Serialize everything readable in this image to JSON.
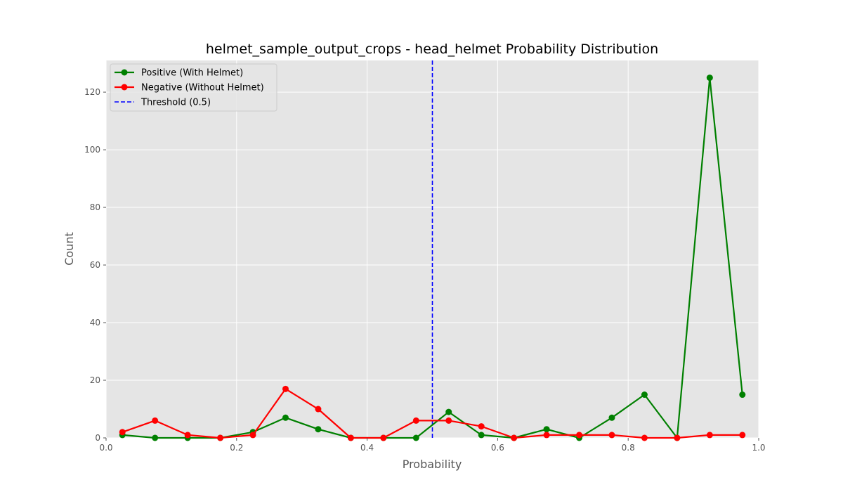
{
  "chart_data": {
    "type": "line",
    "title": "helmet_sample_output_crops - head_helmet Probability Distribution",
    "xlabel": "Probability",
    "ylabel": "Count",
    "xlim": [
      0.0,
      1.0
    ],
    "ylim": [
      0,
      131
    ],
    "xticks": [
      0.0,
      0.2,
      0.4,
      0.6,
      0.8,
      1.0
    ],
    "xtick_labels": [
      "0.0",
      "0.2",
      "0.4",
      "0.6",
      "0.8",
      "1.0"
    ],
    "yticks": [
      0,
      20,
      40,
      60,
      80,
      100,
      120
    ],
    "ytick_labels": [
      "0",
      "20",
      "40",
      "60",
      "80",
      "100",
      "120"
    ],
    "grid": true,
    "legend_position": "top-left",
    "x": [
      0.025,
      0.075,
      0.125,
      0.175,
      0.225,
      0.275,
      0.325,
      0.375,
      0.425,
      0.475,
      0.525,
      0.575,
      0.625,
      0.675,
      0.725,
      0.775,
      0.825,
      0.875,
      0.925,
      0.975
    ],
    "series": [
      {
        "name": "Positive (With Helmet)",
        "color": "#008000",
        "values": [
          1,
          0,
          0,
          0,
          2,
          7,
          3,
          0,
          0,
          0,
          9,
          1,
          0,
          3,
          0,
          7,
          15,
          0,
          125,
          15
        ]
      },
      {
        "name": "Negative (Without Helmet)",
        "color": "#ff0000",
        "values": [
          2,
          6,
          1,
          0,
          1,
          17,
          10,
          0,
          0,
          6,
          6,
          4,
          0,
          1,
          1,
          1,
          0,
          0,
          1,
          1
        ]
      }
    ],
    "threshold": {
      "label": "Threshold (0.5)",
      "x": 0.5,
      "color": "#0000ff"
    },
    "style": {
      "plot_background": "#e5e5e5",
      "grid_color": "#ffffff"
    }
  }
}
